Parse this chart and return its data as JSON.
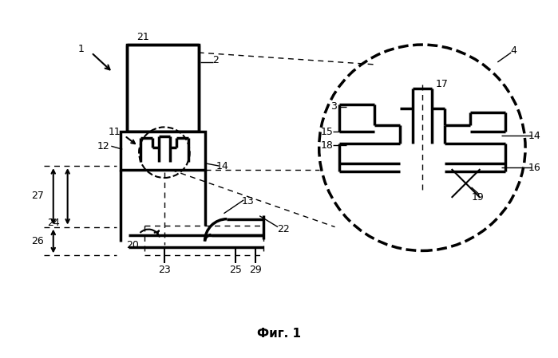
{
  "bg_color": "#ffffff",
  "line_color": "#000000",
  "fig_caption": "Фиг. 1"
}
